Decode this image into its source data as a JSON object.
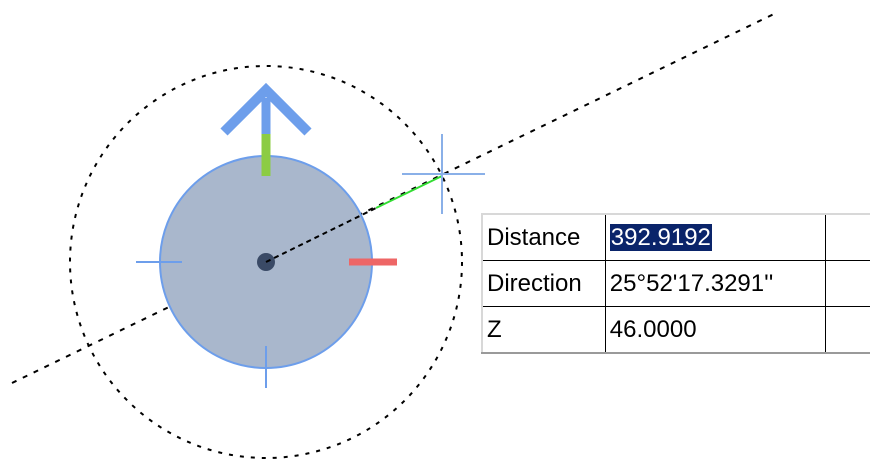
{
  "dynamic_input": {
    "rows": [
      {
        "label": "Distance",
        "value": "392.9192",
        "selected": true
      },
      {
        "label": "Direction",
        "value": "25°52'17.3291''",
        "selected": false
      },
      {
        "label": "Z",
        "value": "46.0000",
        "selected": false
      }
    ]
  },
  "colors": {
    "grip_fill": "#a9b7cc",
    "grip_outline": "#6d9eeb",
    "arrow_blue": "#6d9eeb",
    "axis_green": "#8ccc44",
    "rubberband_green": "#33dd33",
    "axis_red": "#ee6666",
    "crosshair_blue": "#8ab0e8",
    "selection_highlight": "#0a246a"
  },
  "icons": {
    "cursor": "crosshair-cursor",
    "grip": "move-grip-icon"
  }
}
